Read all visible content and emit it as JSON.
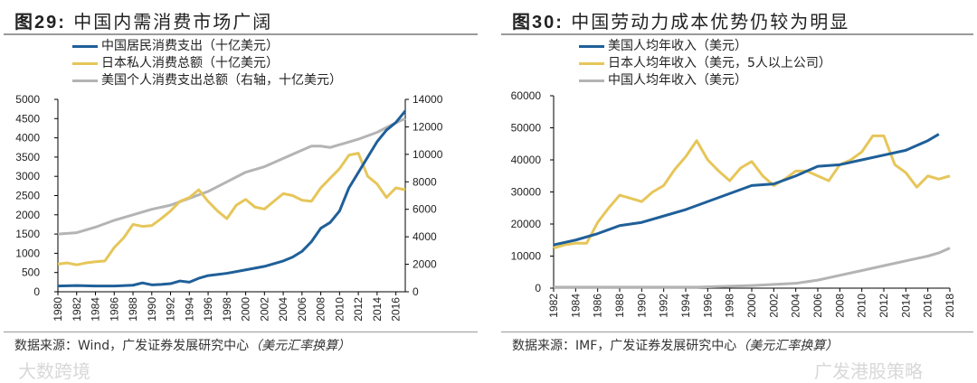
{
  "colors": {
    "blue": "#1f5f99",
    "yellow": "#e6c65a",
    "grey": "#b4b4b4"
  },
  "watermarks": [
    "大数跨境",
    "广发港股策略"
  ],
  "chart_data": [
    {
      "type": "line",
      "figure_label": "图29:",
      "title": "中国内需消费市场广阔",
      "source_prefix": "数据来源：Wind，广发证券发展研究中心",
      "source_note": "（美元汇率换算）",
      "xlim": [
        1980,
        2017
      ],
      "ylim": [
        0,
        5000
      ],
      "y2lim": [
        0,
        14000
      ],
      "xticks": [
        "1980",
        "1982",
        "1984",
        "1986",
        "1988",
        "1990",
        "1992",
        "1994",
        "1996",
        "1998",
        "2000",
        "2002",
        "2004",
        "2006",
        "2008",
        "2010",
        "2012",
        "2014",
        "2016"
      ],
      "yticks": [
        "0",
        "500",
        "1000",
        "1500",
        "2000",
        "2500",
        "3000",
        "3500",
        "4000",
        "4500",
        "5000"
      ],
      "y2ticks": [
        "0",
        "2000",
        "4000",
        "6000",
        "8000",
        "10000",
        "12000",
        "14000"
      ],
      "series": [
        {
          "name": "中国居民消费支出（十亿美元）",
          "color": "blue",
          "axis": "left",
          "x": [
            1980,
            1982,
            1984,
            1986,
            1988,
            1989,
            1990,
            1991,
            1992,
            1993,
            1994,
            1995,
            1996,
            1998,
            2000,
            2002,
            2004,
            2005,
            2006,
            2007,
            2008,
            2009,
            2010,
            2011,
            2012,
            2013,
            2014,
            2015,
            2016,
            2017
          ],
          "y": [
            150,
            160,
            150,
            150,
            170,
            230,
            180,
            190,
            210,
            280,
            250,
            350,
            420,
            480,
            570,
            660,
            800,
            900,
            1050,
            1300,
            1650,
            1800,
            2100,
            2700,
            3100,
            3500,
            3900,
            4200,
            4400,
            4700
          ]
        },
        {
          "name": "日本私人消费总额（十亿美元）",
          "color": "yellow",
          "axis": "left",
          "x": [
            1980,
            1981,
            1982,
            1983,
            1984,
            1985,
            1986,
            1987,
            1988,
            1989,
            1990,
            1991,
            1992,
            1993,
            1994,
            1995,
            1996,
            1997,
            1998,
            1999,
            2000,
            2001,
            2002,
            2003,
            2004,
            2005,
            2006,
            2007,
            2008,
            2009,
            2010,
            2011,
            2012,
            2013,
            2014,
            2015,
            2016,
            2017
          ],
          "y": [
            720,
            750,
            700,
            750,
            780,
            800,
            1150,
            1400,
            1750,
            1700,
            1720,
            1900,
            2100,
            2350,
            2450,
            2650,
            2350,
            2100,
            1900,
            2250,
            2400,
            2200,
            2150,
            2350,
            2550,
            2500,
            2380,
            2350,
            2700,
            2950,
            3200,
            3550,
            3600,
            3000,
            2800,
            2450,
            2700,
            2650
          ]
        },
        {
          "name": "美国个人消费支出总额（右轴，十亿美元）",
          "color": "grey",
          "axis": "right",
          "x": [
            1980,
            1982,
            1984,
            1986,
            1988,
            1990,
            1992,
            1994,
            1996,
            1998,
            2000,
            2002,
            2004,
            2006,
            2007,
            2008,
            2009,
            2010,
            2012,
            2014,
            2016,
            2017
          ],
          "y": [
            4200,
            4300,
            4700,
            5200,
            5600,
            6000,
            6300,
            6800,
            7300,
            8000,
            8700,
            9100,
            9700,
            10300,
            10600,
            10600,
            10500,
            10700,
            11100,
            11600,
            12300,
            12600
          ]
        }
      ]
    },
    {
      "type": "line",
      "figure_label": "图30:",
      "title": "中国劳动力成本优势仍较为明显",
      "source_prefix": "数据来源：IMF，广发证券发展研究中心",
      "source_note": "（美元汇率换算）",
      "xlim": [
        1982,
        2018
      ],
      "ylim": [
        0,
        60000
      ],
      "xticks": [
        "1982",
        "1984",
        "1986",
        "1988",
        "1990",
        "1992",
        "1994",
        "1996",
        "1998",
        "2000",
        "2002",
        "2004",
        "2006",
        "2008",
        "2010",
        "2012",
        "2014",
        "2016",
        "2018"
      ],
      "yticks": [
        "0",
        "10000",
        "20000",
        "30000",
        "40000",
        "50000",
        "60000"
      ],
      "series": [
        {
          "name": "美国人均年收入（美元）",
          "color": "blue",
          "x": [
            1982,
            1984,
            1986,
            1988,
            1990,
            1992,
            1994,
            1996,
            1998,
            2000,
            2002,
            2004,
            2006,
            2008,
            2010,
            2012,
            2014,
            2016,
            2017
          ],
          "y": [
            13500,
            15000,
            17000,
            19500,
            20500,
            22500,
            24500,
            27000,
            29500,
            32000,
            32500,
            35000,
            38000,
            38500,
            40000,
            41500,
            43000,
            46000,
            48000
          ]
        },
        {
          "name": "日本人均年收入（美元，5人以上公司）",
          "color": "yellow",
          "x": [
            1982,
            1983,
            1984,
            1985,
            1986,
            1987,
            1988,
            1989,
            1990,
            1991,
            1992,
            1993,
            1994,
            1995,
            1996,
            1997,
            1998,
            1999,
            2000,
            2001,
            2002,
            2003,
            2004,
            2005,
            2006,
            2007,
            2008,
            2009,
            2010,
            2011,
            2012,
            2013,
            2014,
            2015,
            2016,
            2017,
            2018
          ],
          "y": [
            12500,
            13500,
            14000,
            14000,
            20500,
            25000,
            29000,
            28000,
            27000,
            30000,
            32000,
            37000,
            41000,
            46000,
            40000,
            36500,
            33500,
            37500,
            39500,
            35000,
            32000,
            34000,
            36500,
            36500,
            35000,
            33500,
            38500,
            40000,
            42500,
            47500,
            47500,
            38500,
            36000,
            31500,
            35000,
            34000,
            35000
          ]
        },
        {
          "name": "中国人均年收入（美元）",
          "color": "grey",
          "x": [
            1982,
            1990,
            1995,
            2000,
            2004,
            2006,
            2008,
            2010,
            2012,
            2014,
            2016,
            2017,
            2018
          ],
          "y": [
            300,
            300,
            300,
            800,
            1500,
            2500,
            4000,
            5500,
            7000,
            8500,
            10000,
            11000,
            12500
          ]
        }
      ]
    }
  ]
}
